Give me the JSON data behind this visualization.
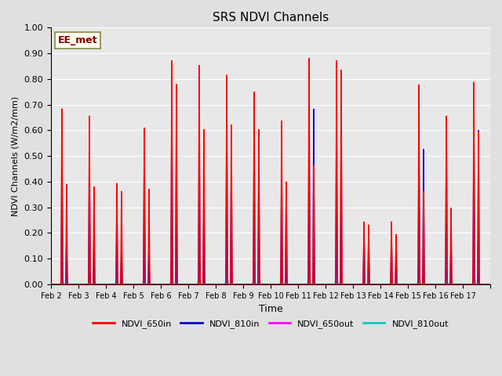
{
  "title": "SRS NDVI Channels",
  "ylabel": "NDVI Channels (W/m2/mm)",
  "xlabel": "Time",
  "annotation": "EE_met",
  "ylim": [
    0.0,
    1.0
  ],
  "legend_labels": [
    "NDVI_650in",
    "NDVI_810in",
    "NDVI_650out",
    "NDVI_810out"
  ],
  "legend_colors": [
    "#ff0000",
    "#0000cc",
    "#ff00ff",
    "#00cccc"
  ],
  "line_colors": {
    "NDVI_650in": "#ff0000",
    "NDVI_810in": "#0000dd",
    "NDVI_650out": "#ff00ff",
    "NDVI_810out": "#00cccc"
  },
  "xtick_labels": [
    "Feb 2",
    "Feb 3",
    "Feb 4",
    "Feb 5",
    "Feb 6",
    "Feb 7",
    "Feb 8",
    "Feb 9",
    "Feb 10",
    "Feb 11",
    "Feb 12",
    "Feb 13",
    "Feb 14",
    "Feb 15",
    "Feb 16",
    "Feb 17"
  ],
  "background_color": "#e0e0e0",
  "plot_bg_color": "#e8e8e8",
  "annotation_bg": "#fffff0",
  "annotation_border": "#888844",
  "grid_color": "#ffffff",
  "n_days": 16,
  "peaks_650in": [
    0.73,
    0.7,
    0.42,
    0.65,
    0.93,
    0.91,
    0.87,
    0.8,
    0.68,
    0.94,
    0.93,
    0.26,
    0.26,
    0.83,
    0.7,
    0.84
  ],
  "peaks_810in": [
    0.59,
    0.57,
    0.32,
    0.62,
    0.77,
    0.73,
    0.71,
    0.65,
    0.52,
    0.76,
    0.75,
    0.22,
    0.2,
    0.58,
    0.67,
    0.65
  ],
  "peaks_650out": [
    0.09,
    0.04,
    0.04,
    0.08,
    0.11,
    0.12,
    0.11,
    0.08,
    0.08,
    0.12,
    0.12,
    0.02,
    0.02,
    0.11,
    0.06,
    0.1
  ],
  "peaks_810out": [
    0.04,
    0.03,
    0.03,
    0.05,
    0.06,
    0.07,
    0.06,
    0.05,
    0.05,
    0.07,
    0.07,
    0.01,
    0.01,
    0.06,
    0.04,
    0.06
  ],
  "peak2_650in": [
    0.42,
    0.41,
    0.39,
    0.4,
    0.84,
    0.65,
    0.67,
    0.65,
    0.43,
    0.5,
    0.9,
    0.25,
    0.21,
    0.39,
    0.32,
    0.64
  ],
  "peak2_810in": [
    0.2,
    0.22,
    0.15,
    0.13,
    0.68,
    0.41,
    0.56,
    0.55,
    0.43,
    0.74,
    0.73,
    0.21,
    0.16,
    0.57,
    0.2,
    0.65
  ],
  "peak2_650out": [
    0.05,
    0.02,
    0.02,
    0.04,
    0.06,
    0.07,
    0.06,
    0.04,
    0.04,
    0.07,
    0.07,
    0.01,
    0.01,
    0.06,
    0.03,
    0.06
  ],
  "peak2_810out": [
    0.02,
    0.01,
    0.01,
    0.02,
    0.03,
    0.04,
    0.03,
    0.02,
    0.02,
    0.04,
    0.04,
    0.005,
    0.005,
    0.03,
    0.02,
    0.03
  ]
}
